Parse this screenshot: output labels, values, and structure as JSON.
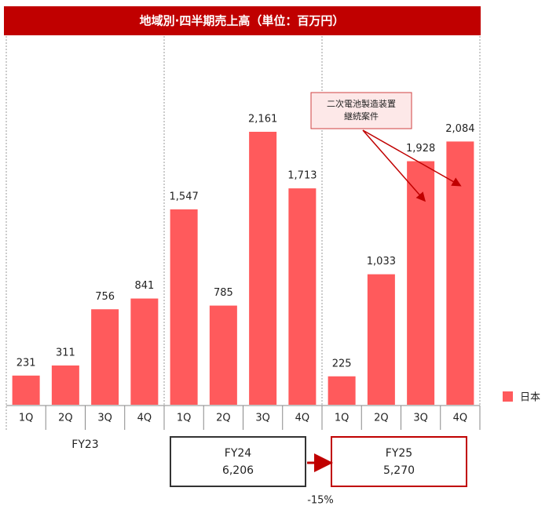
{
  "chart_data": {
    "type": "bar",
    "title": "地域別·四半期売上高（単位：百万円）",
    "categories": [
      "1Q",
      "2Q",
      "3Q",
      "4Q",
      "1Q",
      "2Q",
      "3Q",
      "4Q",
      "1Q",
      "2Q",
      "3Q",
      "4Q"
    ],
    "series": [
      {
        "name": "日本",
        "color": "#ff5a5c",
        "values": [
          231,
          311,
          756,
          841,
          1547,
          785,
          2161,
          1713,
          225,
          1033,
          1928,
          2084
        ],
        "value_labels": [
          "231",
          "311",
          "756",
          "841",
          "1,547",
          "785",
          "2,161",
          "1,713",
          "225",
          "1,033",
          "1,928",
          "2,084"
        ]
      }
    ],
    "groups": [
      {
        "label": "FY23"
      },
      {
        "label": "FY24",
        "total": 6206,
        "total_label": "6,206"
      },
      {
        "label": "FY25",
        "total": 5270,
        "total_label": "5,270"
      }
    ],
    "change": {
      "value": -15,
      "label": "-15%"
    },
    "annotation": [
      "二次電池製造装置",
      "継続案件"
    ],
    "legend": "right"
  }
}
